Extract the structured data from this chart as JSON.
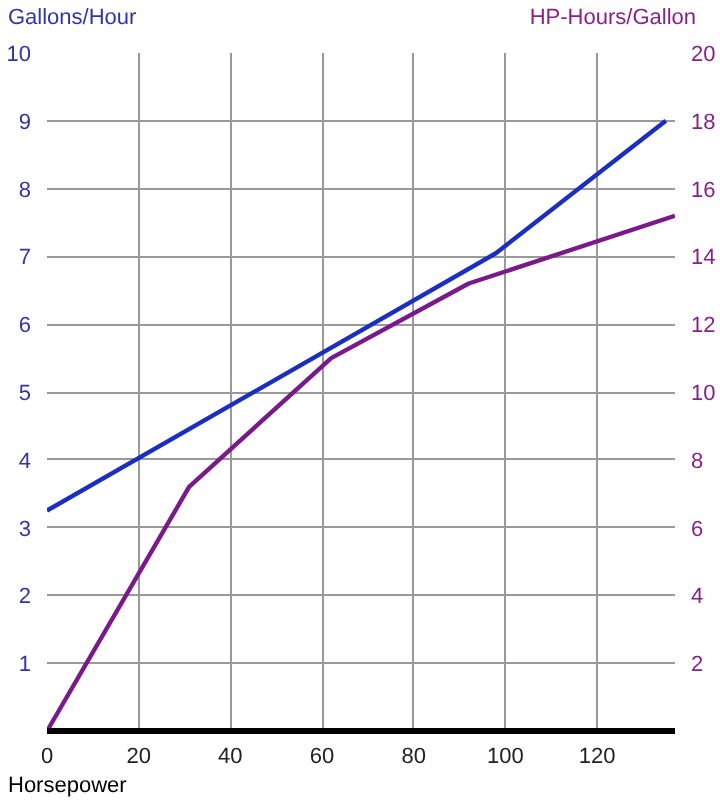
{
  "chart_data": {
    "type": "line",
    "xlabel": "Horsepower",
    "ylabel": "Gallons/Hour",
    "y2label": "HP-Hours/Gallon",
    "xlim": [
      0,
      137
    ],
    "xticks": [
      0,
      20,
      40,
      60,
      80,
      100,
      120
    ],
    "ylim": [
      0,
      10
    ],
    "yticks": [
      1,
      2,
      3,
      4,
      5,
      6,
      7,
      8,
      9,
      10
    ],
    "y2lim": [
      0,
      20
    ],
    "y2ticks": [
      2,
      4,
      6,
      8,
      10,
      12,
      14,
      16,
      18,
      20
    ],
    "grid": true,
    "series": [
      {
        "color": "#1a2fbf",
        "x": [
          0,
          98,
          135
        ],
        "values": [
          3.25,
          7.05,
          9.0
        ]
      },
      {
        "color": "#7a1a8a",
        "axis": "y2",
        "x": [
          0,
          31,
          62,
          92,
          137
        ],
        "values": [
          0,
          7.2,
          11.0,
          13.2,
          15.2
        ]
      }
    ]
  }
}
